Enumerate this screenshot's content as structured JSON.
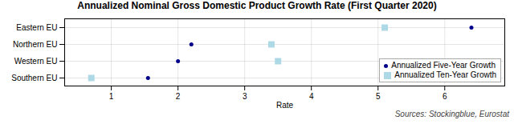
{
  "chart_data": {
    "type": "dot",
    "title": "Annualized Nominal Gross Domestic Product Growth Rate (First Quarter 2020)",
    "xlabel": "Rate",
    "caption": "Sources: Stockingblue, Eurostat",
    "categories": [
      "Eastern EU",
      "Northern EU",
      "Western EU",
      "Southern EU"
    ],
    "series": [
      {
        "name": "Annualized Five-Year Growth",
        "color": "#00008B",
        "marker": "circle",
        "values": [
          6.4,
          2.2,
          2.0,
          1.55
        ]
      },
      {
        "name": "Annualized Ten-Year Growth",
        "color": "#ADD8E6",
        "marker": "square",
        "values": [
          5.1,
          3.4,
          3.5,
          0.7
        ]
      }
    ],
    "xlim": [
      0.3,
      6.9
    ],
    "xticks": [
      1,
      2,
      3,
      4,
      5,
      6
    ],
    "grid": true,
    "legend": "lower right"
  }
}
